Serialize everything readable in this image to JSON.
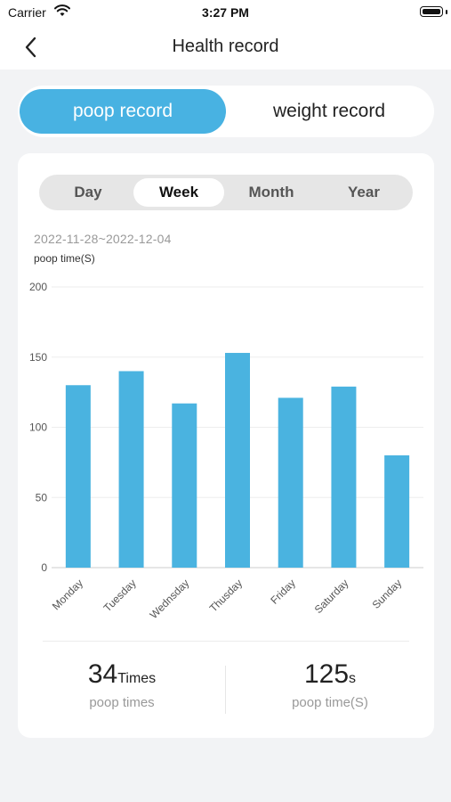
{
  "status_bar": {
    "carrier": "Carrier",
    "time": "3:27 PM"
  },
  "nav": {
    "title": "Health record",
    "back_icon": "chevron-left-icon"
  },
  "segment": {
    "active": "poop record",
    "inactive": "weight record"
  },
  "period_tabs": [
    "Day",
    "Week",
    "Month",
    "Year"
  ],
  "selected_period": "Week",
  "date_range": "2022-11-28~2022-12-04",
  "colors": {
    "accent": "#48b2e2",
    "bar": "#4ab3e0"
  },
  "chart_data": {
    "type": "bar",
    "title": "",
    "xlabel": "",
    "ylabel": "poop time(S)",
    "categories": [
      "Monday",
      "Tuesday",
      "Wednsday",
      "Thusday",
      "Friday",
      "Saturday",
      "Sunday"
    ],
    "values": [
      130,
      140,
      117,
      153,
      121,
      129,
      80
    ],
    "ylim": [
      0,
      200
    ],
    "yticks": [
      0,
      50,
      100,
      150,
      200
    ],
    "grid": true
  },
  "stats": {
    "times_value": "34",
    "times_unit": "Times",
    "times_label": "poop times",
    "time_value": "125",
    "time_unit": "s",
    "time_label": "poop time(S)"
  }
}
